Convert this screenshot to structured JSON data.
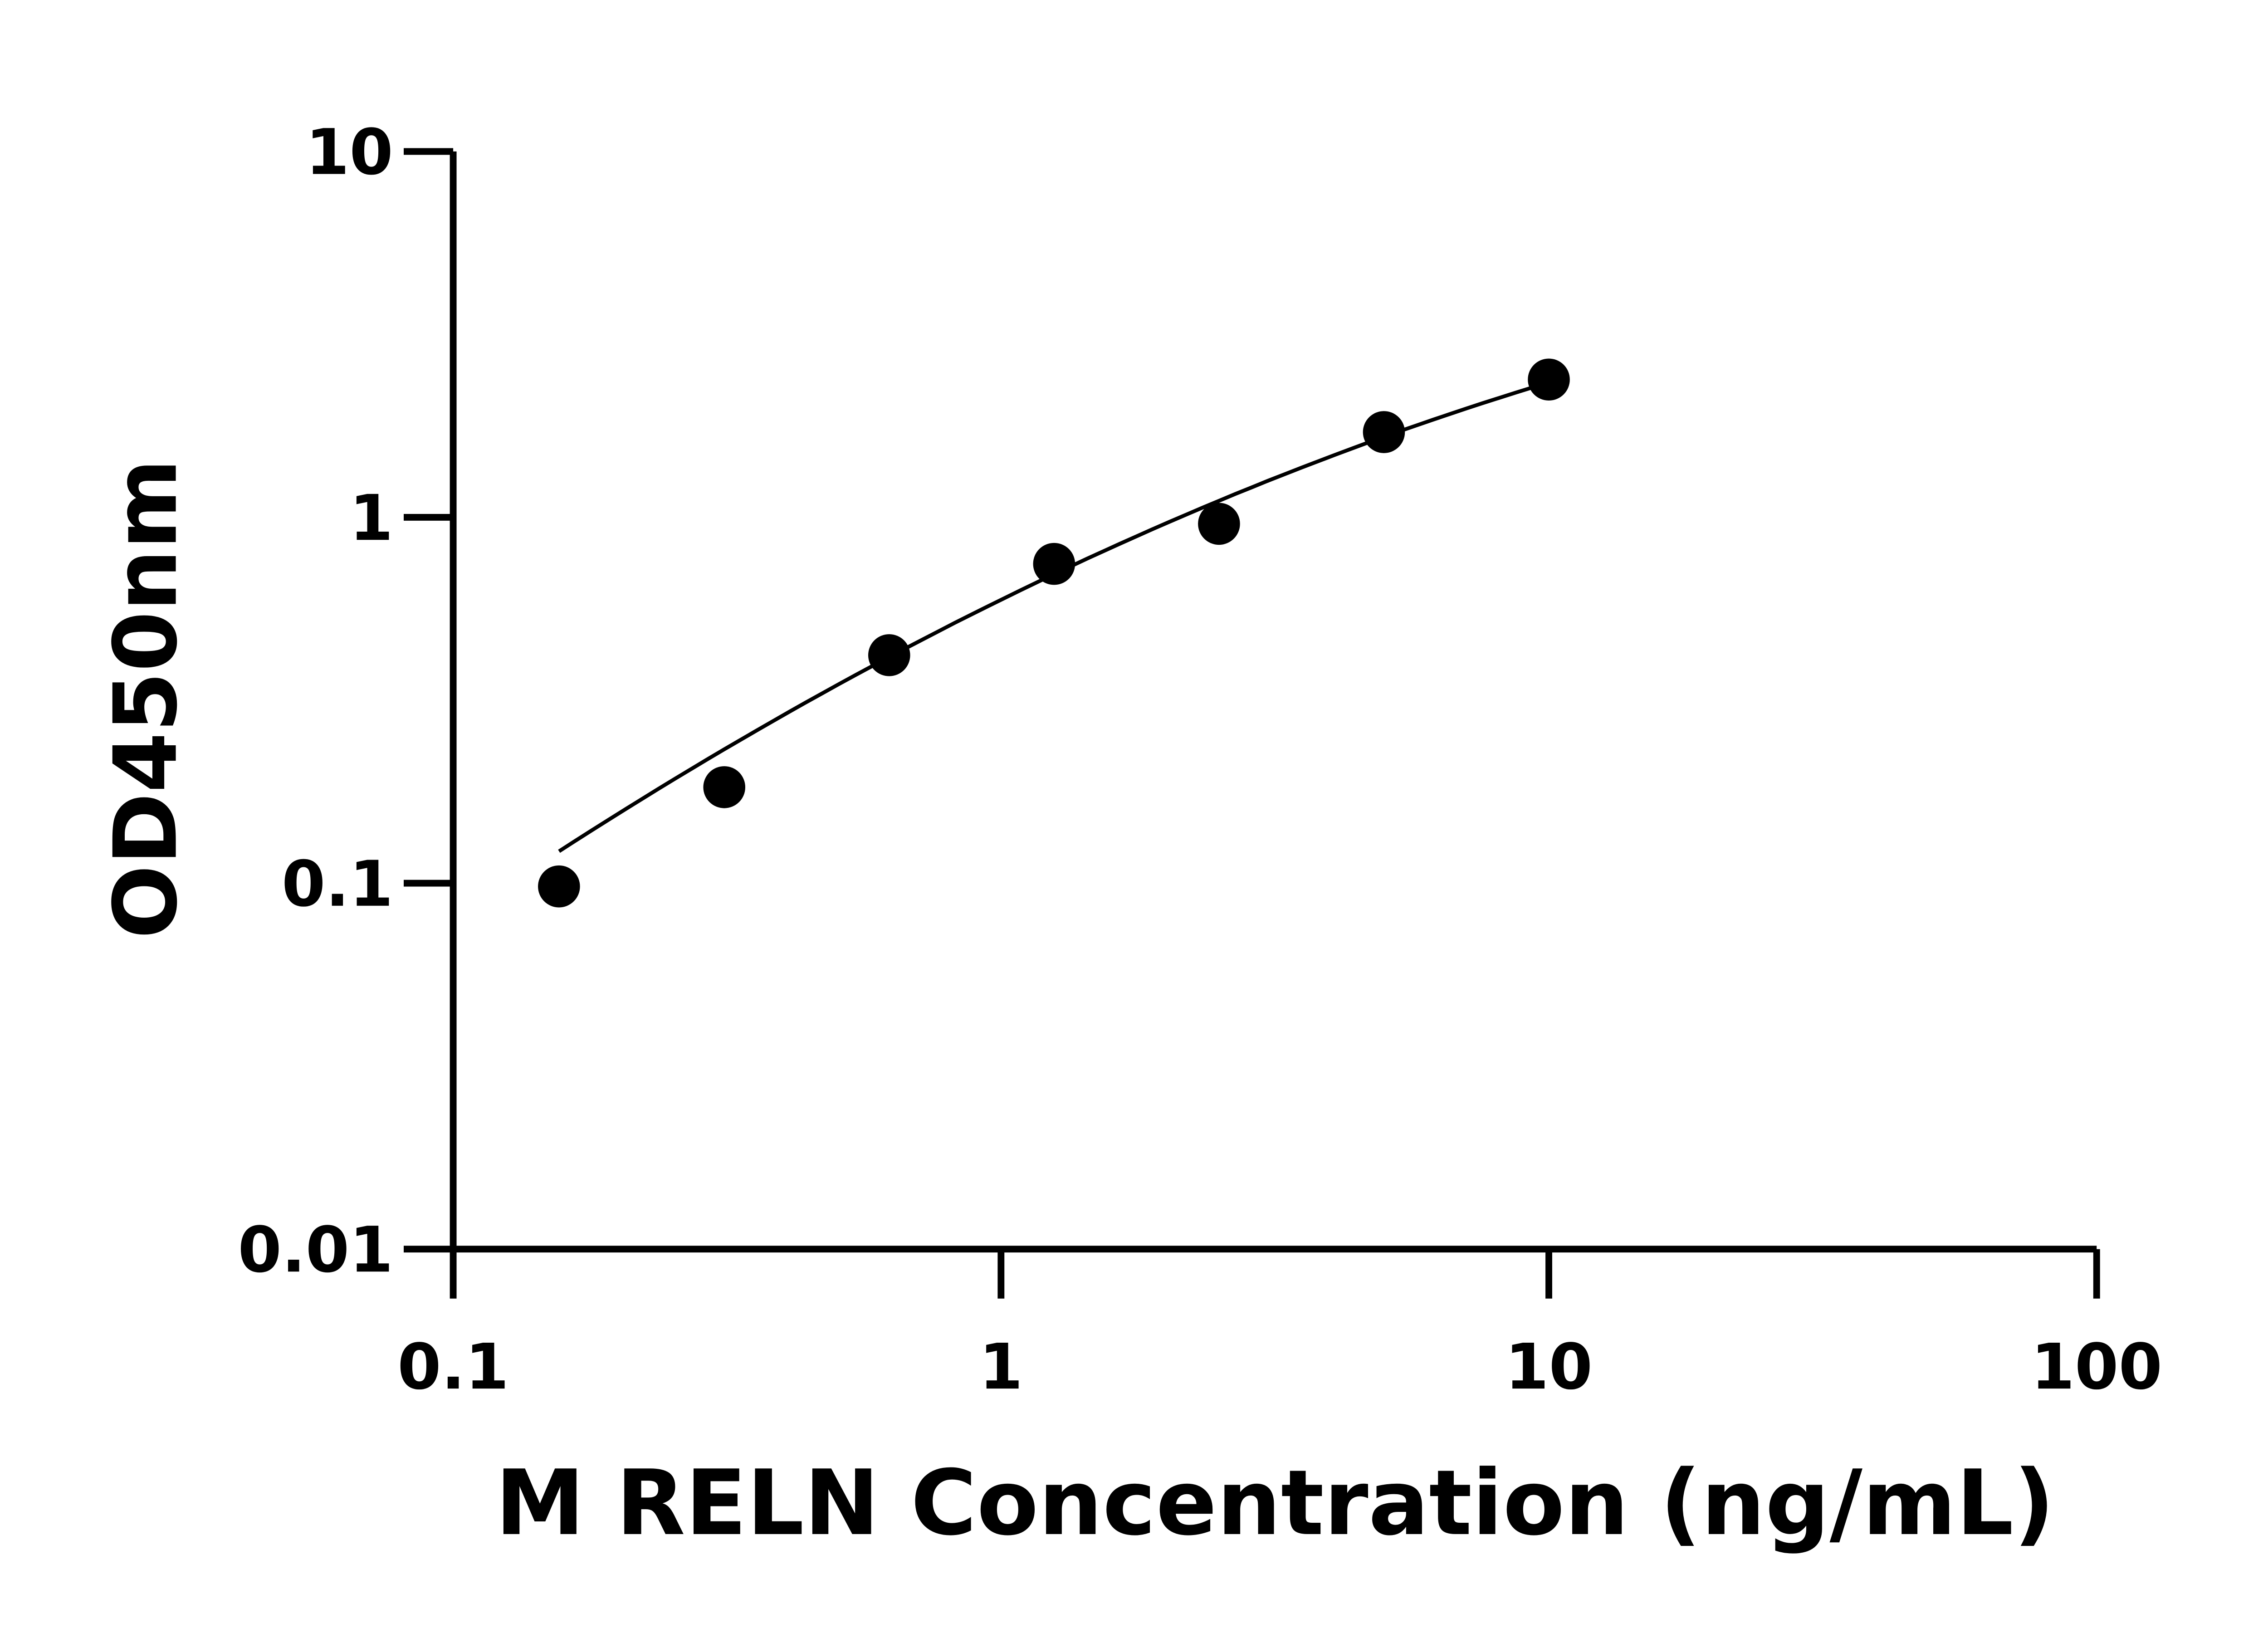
{
  "chart_data": {
    "type": "scatter",
    "title": "",
    "xlabel": "M RELN Concentration (ng/mL)",
    "ylabel": "OD450nm",
    "x_scale": "log",
    "y_scale": "log",
    "xlim": [
      0.1,
      100
    ],
    "ylim": [
      0.01,
      10
    ],
    "x_ticks": [
      0.1,
      1,
      10,
      100
    ],
    "x_tick_labels": [
      "0.1",
      "1",
      "10",
      "100"
    ],
    "y_ticks": [
      0.01,
      0.1,
      1,
      10
    ],
    "y_tick_labels": [
      "0.01",
      "0.1",
      "1",
      "10"
    ],
    "grid": false,
    "legend": "none",
    "points": {
      "x": [
        0.156,
        0.3125,
        0.625,
        1.25,
        2.5,
        5,
        10
      ],
      "y": [
        0.098,
        0.183,
        0.42,
        0.746,
        0.96,
        1.71,
        2.38
      ]
    },
    "fit_curve": {
      "x": [
        0.156,
        0.3125,
        0.625,
        1.25,
        2.5,
        5,
        10
      ],
      "y": [
        0.122,
        0.234,
        0.41,
        0.71,
        1.1,
        1.66,
        2.34
      ]
    },
    "colors": {
      "points": "#000000",
      "curve": "#000000",
      "axes": "#000000"
    }
  }
}
